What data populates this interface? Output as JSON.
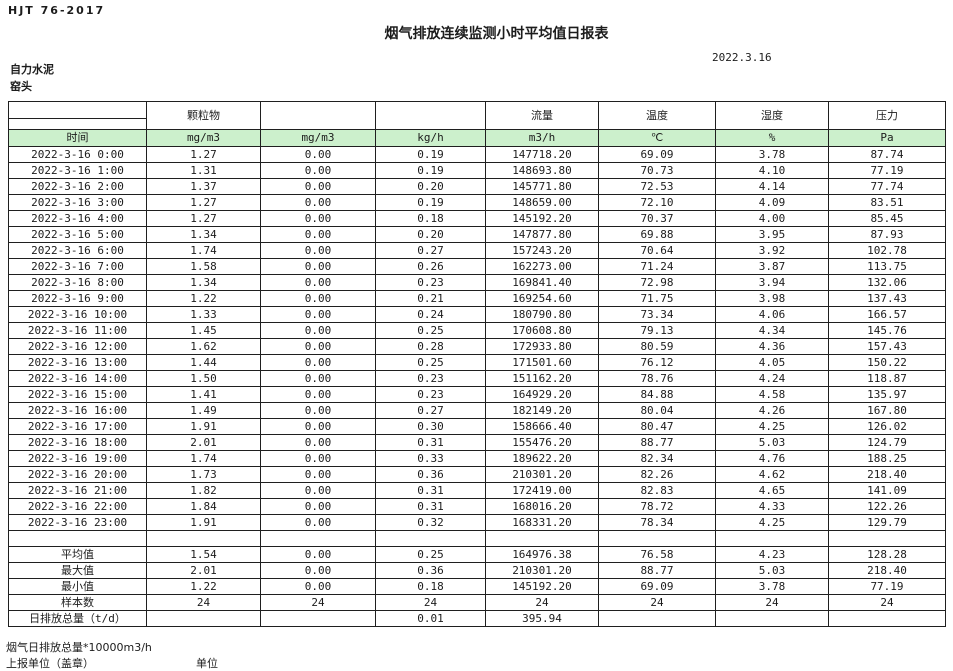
{
  "header": {
    "doc_code": "HJT  76-2017",
    "title": "烟气排放连续监测小时平均值日报表",
    "date": "2022.3.16",
    "company": "自力水泥",
    "station": "窑头"
  },
  "table": {
    "group_headers": [
      "",
      "颗粒物",
      "",
      "",
      "流量",
      "温度",
      "湿度",
      "压力"
    ],
    "unit_row": [
      "时间",
      "mg/m3",
      "mg/m3",
      "kg/h",
      "m3/h",
      "℃",
      "%",
      "Pa"
    ],
    "rows": [
      [
        "2022-3-16 0:00",
        "1.27",
        "0.00",
        "0.19",
        "147718.20",
        "69.09",
        "3.78",
        "87.74"
      ],
      [
        "2022-3-16 1:00",
        "1.31",
        "0.00",
        "0.19",
        "148693.80",
        "70.73",
        "4.10",
        "77.19"
      ],
      [
        "2022-3-16 2:00",
        "1.37",
        "0.00",
        "0.20",
        "145771.80",
        "72.53",
        "4.14",
        "77.74"
      ],
      [
        "2022-3-16 3:00",
        "1.27",
        "0.00",
        "0.19",
        "148659.00",
        "72.10",
        "4.09",
        "83.51"
      ],
      [
        "2022-3-16 4:00",
        "1.27",
        "0.00",
        "0.18",
        "145192.20",
        "70.37",
        "4.00",
        "85.45"
      ],
      [
        "2022-3-16 5:00",
        "1.34",
        "0.00",
        "0.20",
        "147877.80",
        "69.88",
        "3.95",
        "87.93"
      ],
      [
        "2022-3-16 6:00",
        "1.74",
        "0.00",
        "0.27",
        "157243.20",
        "70.64",
        "3.92",
        "102.78"
      ],
      [
        "2022-3-16 7:00",
        "1.58",
        "0.00",
        "0.26",
        "162273.00",
        "71.24",
        "3.87",
        "113.75"
      ],
      [
        "2022-3-16 8:00",
        "1.34",
        "0.00",
        "0.23",
        "169841.40",
        "72.98",
        "3.94",
        "132.06"
      ],
      [
        "2022-3-16 9:00",
        "1.22",
        "0.00",
        "0.21",
        "169254.60",
        "71.75",
        "3.98",
        "137.43"
      ],
      [
        "2022-3-16 10:00",
        "1.33",
        "0.00",
        "0.24",
        "180790.80",
        "73.34",
        "4.06",
        "166.57"
      ],
      [
        "2022-3-16 11:00",
        "1.45",
        "0.00",
        "0.25",
        "170608.80",
        "79.13",
        "4.34",
        "145.76"
      ],
      [
        "2022-3-16 12:00",
        "1.62",
        "0.00",
        "0.28",
        "172933.80",
        "80.59",
        "4.36",
        "157.43"
      ],
      [
        "2022-3-16 13:00",
        "1.44",
        "0.00",
        "0.25",
        "171501.60",
        "76.12",
        "4.05",
        "150.22"
      ],
      [
        "2022-3-16 14:00",
        "1.50",
        "0.00",
        "0.23",
        "151162.20",
        "78.76",
        "4.24",
        "118.87"
      ],
      [
        "2022-3-16 15:00",
        "1.41",
        "0.00",
        "0.23",
        "164929.20",
        "84.88",
        "4.58",
        "135.97"
      ],
      [
        "2022-3-16 16:00",
        "1.49",
        "0.00",
        "0.27",
        "182149.20",
        "80.04",
        "4.26",
        "167.80"
      ],
      [
        "2022-3-16 17:00",
        "1.91",
        "0.00",
        "0.30",
        "158666.40",
        "80.47",
        "4.25",
        "126.02"
      ],
      [
        "2022-3-16 18:00",
        "2.01",
        "0.00",
        "0.31",
        "155476.20",
        "88.77",
        "5.03",
        "124.79"
      ],
      [
        "2022-3-16 19:00",
        "1.74",
        "0.00",
        "0.33",
        "189622.20",
        "82.34",
        "4.76",
        "188.25"
      ],
      [
        "2022-3-16 20:00",
        "1.73",
        "0.00",
        "0.36",
        "210301.20",
        "82.26",
        "4.62",
        "218.40"
      ],
      [
        "2022-3-16 21:00",
        "1.82",
        "0.00",
        "0.31",
        "172419.00",
        "82.83",
        "4.65",
        "141.09"
      ],
      [
        "2022-3-16 22:00",
        "1.84",
        "0.00",
        "0.31",
        "168016.20",
        "78.72",
        "4.33",
        "122.26"
      ],
      [
        "2022-3-16 23:00",
        "1.91",
        "0.00",
        "0.32",
        "168331.20",
        "78.34",
        "4.25",
        "129.79"
      ]
    ],
    "summary": [
      [
        "平均值",
        "1.54",
        "0.00",
        "0.25",
        "164976.38",
        "76.58",
        "4.23",
        "128.28"
      ],
      [
        "最大值",
        "2.01",
        "0.00",
        "0.36",
        "210301.20",
        "88.77",
        "5.03",
        "218.40"
      ],
      [
        "最小值",
        "1.22",
        "0.00",
        "0.18",
        "145192.20",
        "69.09",
        "3.78",
        "77.19"
      ],
      [
        "样本数",
        "24",
        "24",
        "24",
        "24",
        "24",
        "24",
        "24"
      ],
      [
        "日排放总量（t/d）",
        "",
        "",
        "0.01",
        "395.94",
        "",
        "",
        ""
      ]
    ]
  },
  "footer": {
    "note": "烟气日排放总量*10000m3/h",
    "report_unit_label": "上报单位（盖章）",
    "unit_label": "单位"
  },
  "colors": {
    "header_green": "#CCF0CC",
    "border": "#1F1F1F"
  }
}
